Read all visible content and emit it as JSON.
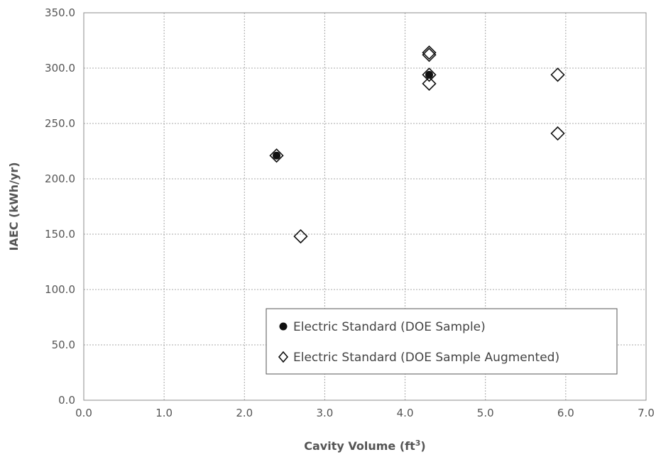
{
  "chart_data": {
    "type": "scatter",
    "xlabel": "Cavity Volume (ft",
    "xlabel_sup": "3",
    "xlabel_end": ")",
    "ylabel": "IAEC (kWh/yr)",
    "xlim": [
      0,
      7
    ],
    "ylim": [
      0,
      350
    ],
    "xticks": [
      "0.0",
      "1.0",
      "2.0",
      "3.0",
      "4.0",
      "5.0",
      "6.0",
      "7.0"
    ],
    "yticks": [
      "0.0",
      "50.0",
      "100.0",
      "150.0",
      "200.0",
      "250.0",
      "300.0",
      "350.0"
    ],
    "grid": true,
    "legend_position": "bottom-right",
    "colors": {
      "marker": "#111111",
      "grid": "#a8a8a8"
    },
    "series": [
      {
        "name": "Electric Standard (DOE Sample)",
        "marker": "filled-circle",
        "x": [
          2.4,
          4.3
        ],
        "y": [
          221,
          294
        ]
      },
      {
        "name": "Electric Standard (DOE Sample Augmented)",
        "marker": "open-diamond",
        "x": [
          2.4,
          2.7,
          4.3,
          4.3,
          4.3,
          4.3,
          5.9,
          5.9
        ],
        "y": [
          221,
          148,
          314,
          312,
          294,
          286,
          294,
          241
        ]
      }
    ]
  }
}
